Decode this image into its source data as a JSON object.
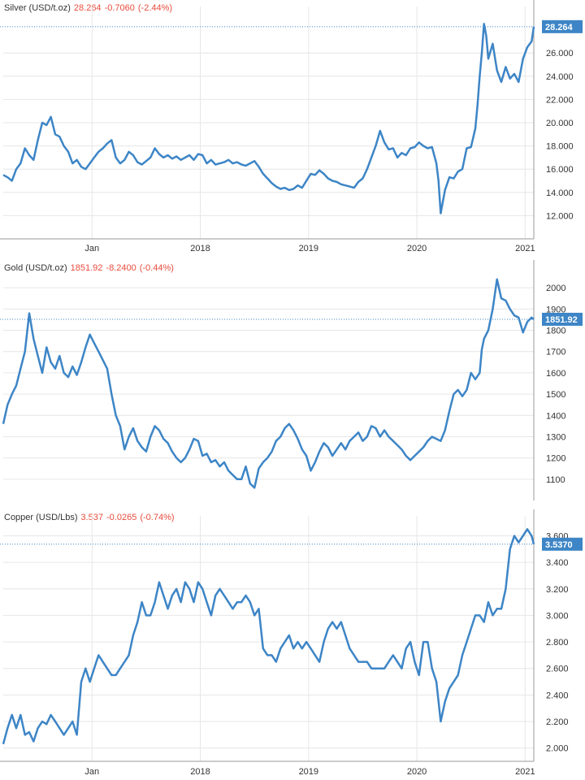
{
  "colors": {
    "line": "#3d85c6",
    "grid": "#e6e6e6",
    "axis": "#999999",
    "badge": "#3d85c6",
    "header_change": "#e84c3d",
    "text": "#333333"
  },
  "chart_data": [
    {
      "type": "line",
      "header": {
        "name": "Silver (USD/t.oz)",
        "price": "28.264",
        "change": "-0.7060",
        "pct": "(-2.44%)"
      },
      "last_value_label": "28.264",
      "last_value": 28.264,
      "ylim": [
        10.0,
        30.0
      ],
      "y_ticks": [
        12.0,
        14.0,
        16.0,
        18.0,
        20.0,
        22.0,
        24.0,
        26.0
      ],
      "y_tick_labels": [
        "12.000",
        "14.000",
        "16.000",
        "18.000",
        "20.000",
        "22.000",
        "24.000",
        "26.000"
      ],
      "x_tick_labels": [
        "Jan",
        "2018",
        "2019",
        "2020",
        "2021"
      ],
      "x_tick_values": [
        2017.0,
        2018.0,
        2019.0,
        2020.0,
        2021.0
      ],
      "xlim": [
        2016.18,
        2021.08
      ],
      "series": [
        {
          "x": [
            2016.18,
            2016.22,
            2016.26,
            2016.3,
            2016.34,
            2016.38,
            2016.42,
            2016.46,
            2016.5,
            2016.54,
            2016.58,
            2016.62,
            2016.66,
            2016.7,
            2016.74,
            2016.78,
            2016.82,
            2016.86,
            2016.9,
            2016.94,
            2016.98,
            2017.02,
            2017.06,
            2017.1,
            2017.14,
            2017.18,
            2017.22,
            2017.26,
            2017.3,
            2017.34,
            2017.38,
            2017.42,
            2017.46,
            2017.5,
            2017.54,
            2017.58,
            2017.62,
            2017.66,
            2017.7,
            2017.74,
            2017.78,
            2017.82,
            2017.86,
            2017.9,
            2017.94,
            2017.98,
            2018.02,
            2018.06,
            2018.1,
            2018.14,
            2018.18,
            2018.22,
            2018.26,
            2018.3,
            2018.34,
            2018.38,
            2018.42,
            2018.46,
            2018.5,
            2018.54,
            2018.58,
            2018.62,
            2018.66,
            2018.7,
            2018.74,
            2018.78,
            2018.82,
            2018.86,
            2018.9,
            2018.94,
            2018.98,
            2019.02,
            2019.06,
            2019.1,
            2019.14,
            2019.18,
            2019.22,
            2019.26,
            2019.3,
            2019.34,
            2019.38,
            2019.42,
            2019.46,
            2019.5,
            2019.54,
            2019.58,
            2019.62,
            2019.66,
            2019.7,
            2019.74,
            2019.78,
            2019.82,
            2019.86,
            2019.9,
            2019.94,
            2019.98,
            2020.02,
            2020.06,
            2020.1,
            2020.14,
            2020.18,
            2020.2,
            2020.22,
            2020.26,
            2020.3,
            2020.34,
            2020.38,
            2020.42,
            2020.46,
            2020.5,
            2020.54,
            2020.56,
            2020.58,
            2020.6,
            2020.62,
            2020.64,
            2020.66,
            2020.7,
            2020.74,
            2020.78,
            2020.82,
            2020.86,
            2020.9,
            2020.94,
            2020.98,
            2021.02,
            2021.06,
            2021.08
          ],
          "y": [
            15.5,
            15.3,
            15.0,
            16.0,
            16.5,
            17.8,
            17.2,
            16.8,
            18.5,
            20.0,
            19.8,
            20.5,
            19.0,
            18.8,
            18.0,
            17.5,
            16.5,
            16.8,
            16.2,
            16.0,
            16.5,
            17.0,
            17.5,
            17.8,
            18.2,
            18.5,
            17.0,
            16.5,
            16.8,
            17.5,
            17.2,
            16.6,
            16.4,
            16.7,
            17.0,
            17.8,
            17.3,
            17.0,
            17.2,
            16.9,
            17.1,
            16.8,
            17.0,
            17.2,
            16.8,
            17.3,
            17.2,
            16.5,
            16.8,
            16.4,
            16.5,
            16.6,
            16.8,
            16.5,
            16.6,
            16.4,
            16.3,
            16.5,
            16.7,
            16.2,
            15.6,
            15.2,
            14.8,
            14.5,
            14.3,
            14.4,
            14.2,
            14.3,
            14.6,
            14.4,
            15.0,
            15.6,
            15.5,
            15.9,
            15.6,
            15.2,
            15.0,
            14.9,
            14.7,
            14.6,
            14.5,
            14.4,
            14.9,
            15.2,
            16.0,
            17.0,
            18.0,
            19.3,
            18.3,
            17.7,
            17.8,
            17.0,
            17.4,
            17.2,
            17.8,
            17.9,
            18.3,
            18.0,
            17.8,
            17.9,
            16.5,
            15.0,
            12.2,
            14.2,
            15.3,
            15.2,
            15.8,
            16.0,
            17.8,
            17.9,
            19.5,
            21.5,
            24.0,
            26.0,
            28.5,
            27.5,
            25.5,
            26.8,
            24.5,
            23.5,
            24.8,
            23.8,
            24.2,
            23.5,
            25.5,
            26.5,
            27.0,
            28.264
          ]
        }
      ]
    },
    {
      "type": "line",
      "header": {
        "name": "Gold (USD/t.oz)",
        "price": "1851.92",
        "change": "-8.2400",
        "pct": "(-0.44%)"
      },
      "last_value_label": "1851.92",
      "last_value": 1851.92,
      "ylim": [
        1000,
        2100
      ],
      "y_ticks": [
        1100,
        1200,
        1300,
        1400,
        1500,
        1600,
        1700,
        1800,
        1900,
        2000
      ],
      "y_tick_labels": [
        "1100",
        "1200",
        "1300",
        "1400",
        "1500",
        "1600",
        "1700",
        "1800",
        "1900",
        "2000"
      ],
      "x_tick_labels": [],
      "x_tick_values": [],
      "xlim": [
        2016.18,
        2021.08
      ],
      "series": [
        {
          "x": [
            2016.18,
            2016.22,
            2016.26,
            2016.3,
            2016.34,
            2016.38,
            2016.42,
            2016.46,
            2016.5,
            2016.54,
            2016.58,
            2016.62,
            2016.66,
            2016.7,
            2016.74,
            2016.78,
            2016.82,
            2016.86,
            2016.9,
            2016.94,
            2016.98,
            2017.02,
            2017.06,
            2017.1,
            2017.14,
            2017.18,
            2017.22,
            2017.26,
            2017.3,
            2017.34,
            2017.38,
            2017.42,
            2017.46,
            2017.5,
            2017.54,
            2017.58,
            2017.62,
            2017.66,
            2017.7,
            2017.74,
            2017.78,
            2017.82,
            2017.86,
            2017.9,
            2017.94,
            2017.98,
            2018.02,
            2018.06,
            2018.1,
            2018.14,
            2018.18,
            2018.22,
            2018.26,
            2018.3,
            2018.34,
            2018.38,
            2018.42,
            2018.46,
            2018.5,
            2018.54,
            2018.58,
            2018.62,
            2018.66,
            2018.7,
            2018.74,
            2018.78,
            2018.82,
            2018.86,
            2018.9,
            2018.94,
            2018.98,
            2019.02,
            2019.06,
            2019.1,
            2019.14,
            2019.18,
            2019.22,
            2019.26,
            2019.3,
            2019.34,
            2019.38,
            2019.42,
            2019.46,
            2019.5,
            2019.54,
            2019.58,
            2019.62,
            2019.66,
            2019.7,
            2019.74,
            2019.78,
            2019.82,
            2019.86,
            2019.9,
            2019.94,
            2019.98,
            2020.02,
            2020.06,
            2020.1,
            2020.14,
            2020.18,
            2020.22,
            2020.26,
            2020.3,
            2020.34,
            2020.38,
            2020.42,
            2020.46,
            2020.5,
            2020.54,
            2020.58,
            2020.6,
            2020.62,
            2020.66,
            2020.7,
            2020.74,
            2020.78,
            2020.82,
            2020.86,
            2020.9,
            2020.94,
            2020.98,
            2021.02,
            2021.06,
            2021.08
          ],
          "y": [
            1360,
            1450,
            1500,
            1540,
            1620,
            1700,
            1880,
            1760,
            1680,
            1600,
            1720,
            1650,
            1620,
            1680,
            1600,
            1580,
            1630,
            1590,
            1650,
            1720,
            1780,
            1740,
            1700,
            1660,
            1620,
            1500,
            1400,
            1350,
            1240,
            1300,
            1340,
            1280,
            1250,
            1230,
            1300,
            1350,
            1330,
            1290,
            1270,
            1230,
            1200,
            1180,
            1200,
            1240,
            1290,
            1280,
            1210,
            1220,
            1180,
            1190,
            1160,
            1180,
            1140,
            1120,
            1100,
            1100,
            1160,
            1080,
            1060,
            1150,
            1180,
            1200,
            1230,
            1280,
            1300,
            1340,
            1360,
            1330,
            1290,
            1240,
            1210,
            1140,
            1180,
            1230,
            1270,
            1250,
            1210,
            1240,
            1270,
            1240,
            1280,
            1300,
            1320,
            1280,
            1300,
            1350,
            1340,
            1300,
            1330,
            1300,
            1280,
            1260,
            1240,
            1210,
            1190,
            1210,
            1230,
            1250,
            1280,
            1300,
            1290,
            1280,
            1330,
            1420,
            1500,
            1520,
            1490,
            1520,
            1600,
            1570,
            1600,
            1710,
            1760,
            1800,
            1900,
            2040,
            1950,
            1940,
            1900,
            1870,
            1860,
            1790,
            1840,
            1860,
            1851.92
          ]
        }
      ]
    },
    {
      "type": "line",
      "header": {
        "name": "Copper (USD/Lbs)",
        "price": "3.537",
        "change": "-0.0265",
        "pct": "(-0.74%)"
      },
      "last_value_label": "3.5370",
      "last_value": 3.537,
      "ylim": [
        1.9,
        3.75
      ],
      "y_ticks": [
        2.0,
        2.2,
        2.4,
        2.6,
        2.8,
        3.0,
        3.2,
        3.4,
        3.6
      ],
      "y_tick_labels": [
        "2.000",
        "2.200",
        "2.400",
        "2.600",
        "2.800",
        "3.000",
        "3.200",
        "3.400",
        "3.600"
      ],
      "x_tick_labels": [
        "Jan",
        "2018",
        "2019",
        "2020",
        "2021"
      ],
      "x_tick_values": [
        2017.0,
        2018.0,
        2019.0,
        2020.0,
        2021.0
      ],
      "xlim": [
        2016.18,
        2021.08
      ],
      "series": [
        {
          "x": [
            2016.18,
            2016.22,
            2016.26,
            2016.3,
            2016.34,
            2016.38,
            2016.42,
            2016.46,
            2016.5,
            2016.54,
            2016.58,
            2016.62,
            2016.66,
            2016.7,
            2016.74,
            2016.78,
            2016.82,
            2016.86,
            2016.9,
            2016.94,
            2016.98,
            2017.02,
            2017.06,
            2017.1,
            2017.14,
            2017.18,
            2017.22,
            2017.26,
            2017.3,
            2017.34,
            2017.38,
            2017.42,
            2017.46,
            2017.5,
            2017.54,
            2017.58,
            2017.62,
            2017.66,
            2017.7,
            2017.74,
            2017.78,
            2017.82,
            2017.86,
            2017.9,
            2017.94,
            2017.98,
            2018.02,
            2018.06,
            2018.1,
            2018.14,
            2018.18,
            2018.22,
            2018.26,
            2018.3,
            2018.34,
            2018.38,
            2018.42,
            2018.46,
            2018.5,
            2018.54,
            2018.58,
            2018.62,
            2018.66,
            2018.7,
            2018.74,
            2018.78,
            2018.82,
            2018.86,
            2018.9,
            2018.94,
            2018.98,
            2019.02,
            2019.06,
            2019.1,
            2019.14,
            2019.18,
            2019.22,
            2019.26,
            2019.3,
            2019.34,
            2019.38,
            2019.42,
            2019.46,
            2019.5,
            2019.54,
            2019.58,
            2019.62,
            2019.66,
            2019.7,
            2019.74,
            2019.78,
            2019.82,
            2019.86,
            2019.9,
            2019.94,
            2019.98,
            2020.02,
            2020.06,
            2020.1,
            2020.14,
            2020.18,
            2020.22,
            2020.26,
            2020.3,
            2020.34,
            2020.38,
            2020.42,
            2020.46,
            2020.5,
            2020.54,
            2020.58,
            2020.62,
            2020.66,
            2020.7,
            2020.74,
            2020.78,
            2020.82,
            2020.86,
            2020.9,
            2020.94,
            2020.98,
            2021.02,
            2021.06,
            2021.08
          ],
          "y": [
            2.03,
            2.15,
            2.25,
            2.15,
            2.25,
            2.1,
            2.12,
            2.05,
            2.15,
            2.2,
            2.18,
            2.25,
            2.2,
            2.15,
            2.1,
            2.15,
            2.2,
            2.1,
            2.5,
            2.6,
            2.5,
            2.6,
            2.7,
            2.65,
            2.6,
            2.55,
            2.55,
            2.6,
            2.65,
            2.7,
            2.85,
            2.95,
            3.1,
            3.0,
            3.0,
            3.1,
            3.25,
            3.15,
            3.05,
            3.15,
            3.2,
            3.1,
            3.25,
            3.2,
            3.1,
            3.25,
            3.2,
            3.1,
            3.0,
            3.15,
            3.2,
            3.15,
            3.1,
            3.05,
            3.1,
            3.1,
            3.15,
            3.1,
            3.0,
            3.05,
            2.75,
            2.7,
            2.7,
            2.65,
            2.75,
            2.8,
            2.85,
            2.75,
            2.8,
            2.75,
            2.8,
            2.75,
            2.7,
            2.65,
            2.8,
            2.9,
            2.95,
            2.9,
            2.95,
            2.85,
            2.75,
            2.7,
            2.65,
            2.65,
            2.65,
            2.6,
            2.6,
            2.6,
            2.6,
            2.65,
            2.7,
            2.65,
            2.6,
            2.75,
            2.8,
            2.65,
            2.55,
            2.8,
            2.8,
            2.6,
            2.5,
            2.2,
            2.35,
            2.45,
            2.5,
            2.55,
            2.7,
            2.8,
            2.9,
            3.0,
            3.0,
            2.95,
            3.1,
            3.0,
            3.05,
            3.05,
            3.2,
            3.5,
            3.6,
            3.55,
            3.6,
            3.65,
            3.6,
            3.537
          ]
        }
      ]
    }
  ]
}
